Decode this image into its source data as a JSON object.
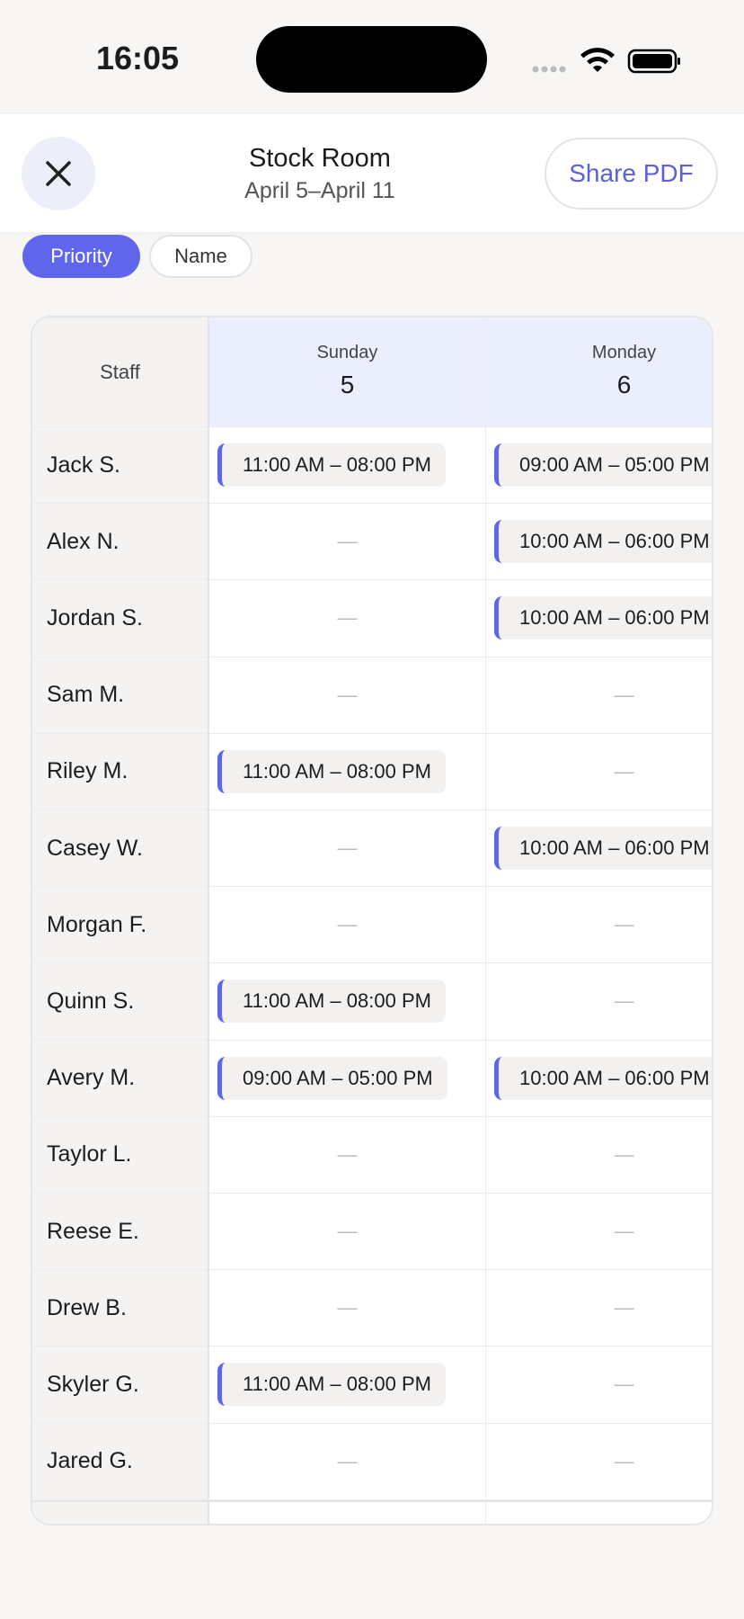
{
  "status_bar": {
    "time": "16:05"
  },
  "header": {
    "title": "Stock Room",
    "subtitle": "April 5–April 11",
    "share_button": "Share PDF"
  },
  "sort_chips": [
    {
      "label": "Priority",
      "active": true
    },
    {
      "label": "Name",
      "active": false
    }
  ],
  "table": {
    "staff_header": "Staff",
    "empty": "—",
    "days": [
      {
        "name": "Sunday",
        "date": 5
      },
      {
        "name": "Monday",
        "date": 6
      }
    ],
    "rows": [
      {
        "name": "Jack S.",
        "shifts": [
          "11:00 AM – 08:00 PM",
          "09:00 AM – 05:00 PM"
        ]
      },
      {
        "name": "Alex N.",
        "shifts": [
          null,
          "10:00 AM – 06:00 PM"
        ]
      },
      {
        "name": "Jordan S.",
        "shifts": [
          null,
          "10:00 AM – 06:00 PM"
        ]
      },
      {
        "name": "Sam M.",
        "shifts": [
          null,
          null
        ]
      },
      {
        "name": "Riley M.",
        "shifts": [
          "11:00 AM – 08:00 PM",
          null
        ]
      },
      {
        "name": "Casey W.",
        "shifts": [
          null,
          "10:00 AM – 06:00 PM"
        ]
      },
      {
        "name": "Morgan F.",
        "shifts": [
          null,
          null
        ]
      },
      {
        "name": "Quinn S.",
        "shifts": [
          "11:00 AM – 08:00 PM",
          null
        ]
      },
      {
        "name": "Avery M.",
        "shifts": [
          "09:00 AM – 05:00 PM",
          "10:00 AM – 06:00 PM"
        ]
      },
      {
        "name": "Taylor L.",
        "shifts": [
          null,
          null
        ]
      },
      {
        "name": "Reese E.",
        "shifts": [
          null,
          null
        ]
      },
      {
        "name": "Drew B.",
        "shifts": [
          null,
          null
        ]
      },
      {
        "name": "Skyler G.",
        "shifts": [
          "11:00 AM – 08:00 PM",
          null
        ]
      },
      {
        "name": "Jared G.",
        "shifts": [
          null,
          null
        ]
      }
    ]
  }
}
